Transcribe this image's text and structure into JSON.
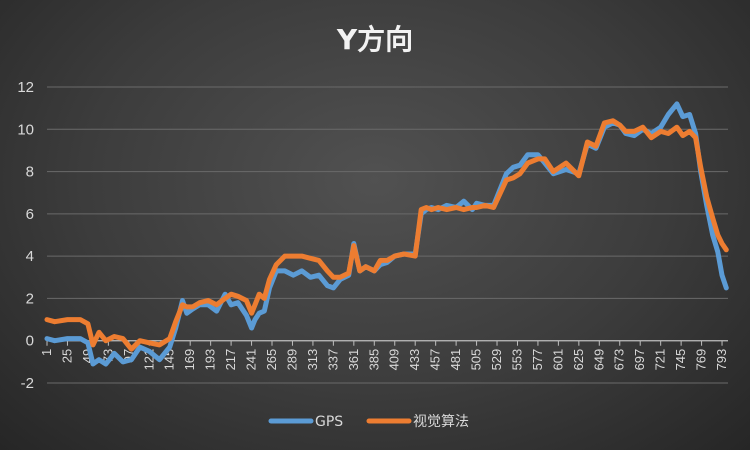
{
  "chart_data": {
    "type": "line",
    "title": "Y方向",
    "xlabel": "",
    "ylabel": "",
    "ylim": [
      -2,
      12
    ],
    "yticks": [
      "-2",
      "0",
      "2",
      "4",
      "6",
      "8",
      "10",
      "12"
    ],
    "xlim": [
      1,
      800
    ],
    "xticks": [
      "1",
      "25",
      "49",
      "73",
      "97",
      "121",
      "145",
      "169",
      "193",
      "217",
      "241",
      "265",
      "289",
      "313",
      "337",
      "361",
      "385",
      "409",
      "433",
      "457",
      "481",
      "505",
      "529",
      "553",
      "577",
      "601",
      "625",
      "649",
      "673",
      "697",
      "721",
      "745",
      "769",
      "793"
    ],
    "grid": true,
    "legend_position": "bottom",
    "colors": {
      "GPS": "#5b9bd5",
      "视觉算法": "#ed7d31"
    },
    "series": [
      {
        "name": "GPS",
        "x": [
          1,
          10,
          25,
          40,
          49,
          55,
          62,
          70,
          80,
          90,
          100,
          110,
          121,
          133,
          145,
          152,
          160,
          165,
          172,
          180,
          190,
          200,
          210,
          217,
          225,
          235,
          241,
          245,
          250,
          256,
          262,
          270,
          280,
          290,
          300,
          310,
          320,
          330,
          337,
          345,
          355,
          361,
          368,
          375,
          385,
          392,
          400,
          409,
          420,
          433,
          440,
          446,
          452,
          460,
          470,
          481,
          490,
          500,
          505,
          515,
          525,
          540,
          548,
          556,
          565,
          577,
          585,
          595,
          610,
          625,
          635,
          645,
          655,
          665,
          673,
          680,
          690,
          700,
          710,
          721,
          730,
          740,
          747,
          755,
          762,
          768,
          775,
          782,
          788,
          793,
          798
        ],
        "values": [
          0.1,
          0.0,
          0.1,
          0.1,
          -0.1,
          -1.1,
          -0.9,
          -1.1,
          -0.6,
          -1.0,
          -0.9,
          -0.3,
          -0.5,
          -0.9,
          -0.3,
          0.6,
          1.9,
          1.3,
          1.5,
          1.7,
          1.7,
          1.4,
          2.2,
          1.7,
          1.8,
          1.2,
          0.6,
          1.0,
          1.3,
          1.4,
          2.5,
          3.3,
          3.3,
          3.1,
          3.3,
          3.0,
          3.1,
          2.6,
          2.5,
          2.9,
          3.1,
          4.6,
          3.3,
          3.5,
          3.3,
          3.6,
          3.7,
          4.0,
          4.1,
          4.1,
          6.0,
          6.2,
          6.3,
          6.2,
          6.4,
          6.3,
          6.6,
          6.2,
          6.5,
          6.4,
          6.4,
          7.9,
          8.2,
          8.3,
          8.8,
          8.8,
          8.4,
          7.9,
          8.1,
          7.9,
          9.3,
          9.1,
          10.1,
          10.3,
          10.2,
          9.8,
          9.7,
          10.0,
          9.8,
          10.1,
          10.7,
          11.2,
          10.6,
          10.7,
          9.8,
          8.0,
          6.4,
          5.0,
          4.2,
          3.1,
          2.5
        ]
      },
      {
        "name": "视觉算法",
        "x": [
          1,
          10,
          25,
          40,
          49,
          55,
          62,
          70,
          80,
          90,
          100,
          110,
          121,
          133,
          145,
          152,
          160,
          165,
          172,
          180,
          190,
          200,
          210,
          217,
          225,
          235,
          241,
          245,
          250,
          256,
          262,
          270,
          280,
          290,
          300,
          310,
          320,
          330,
          337,
          345,
          355,
          361,
          368,
          375,
          385,
          392,
          400,
          409,
          420,
          433,
          440,
          446,
          452,
          460,
          470,
          481,
          490,
          500,
          505,
          515,
          525,
          540,
          548,
          556,
          565,
          577,
          585,
          595,
          610,
          625,
          635,
          645,
          655,
          665,
          673,
          680,
          690,
          700,
          710,
          721,
          730,
          740,
          747,
          755,
          762,
          768,
          775,
          782,
          788,
          793,
          798
        ],
        "values": [
          1.0,
          0.9,
          1.0,
          1.0,
          0.8,
          -0.2,
          0.4,
          0.0,
          0.2,
          0.1,
          -0.4,
          0.0,
          -0.1,
          -0.2,
          0.1,
          0.9,
          1.7,
          1.6,
          1.6,
          1.8,
          1.9,
          1.7,
          2.0,
          2.2,
          2.1,
          1.9,
          1.3,
          1.7,
          2.2,
          2.0,
          2.9,
          3.6,
          4.0,
          4.0,
          4.0,
          3.9,
          3.8,
          3.3,
          3.0,
          3.0,
          3.2,
          4.5,
          3.3,
          3.5,
          3.3,
          3.8,
          3.8,
          4.0,
          4.1,
          4.0,
          6.2,
          6.3,
          6.2,
          6.3,
          6.2,
          6.3,
          6.2,
          6.3,
          6.3,
          6.4,
          6.3,
          7.6,
          7.7,
          7.9,
          8.4,
          8.6,
          8.6,
          8.0,
          8.4,
          7.8,
          9.4,
          9.2,
          10.3,
          10.4,
          10.2,
          9.9,
          9.9,
          10.1,
          9.6,
          9.9,
          9.8,
          10.1,
          9.7,
          9.9,
          9.6,
          8.2,
          6.8,
          5.8,
          5.0,
          4.6,
          4.3
        ]
      }
    ]
  }
}
